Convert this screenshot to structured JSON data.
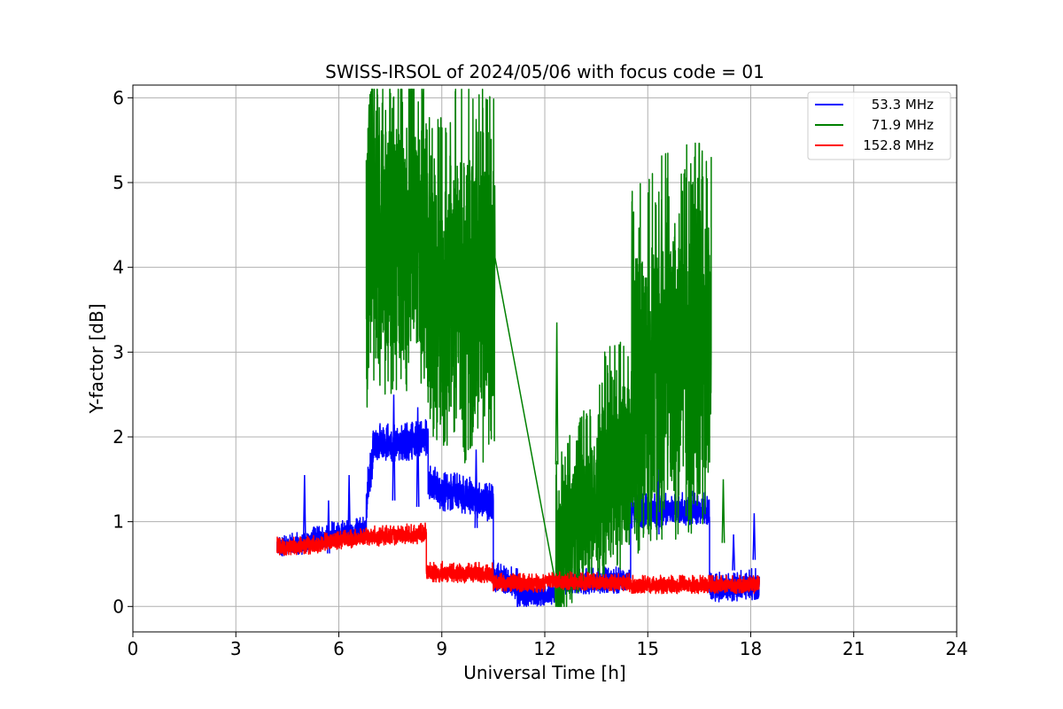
{
  "chart_data": {
    "type": "line",
    "title": "SWISS-IRSOL of 2024/05/06 with focus code = 01",
    "xlabel": "Universal Time [h]",
    "ylabel": "Y-factor [dB]",
    "xlim": [
      0,
      24
    ],
    "ylim": [
      -0.3,
      6.15
    ],
    "xticks": [
      0,
      3,
      6,
      9,
      12,
      15,
      18,
      21,
      24
    ],
    "yticks": [
      0,
      1,
      2,
      3,
      4,
      5,
      6
    ],
    "grid": true,
    "legend_position": "top-right",
    "series": [
      {
        "name": "53.3 MHz",
        "color": "#0000ff",
        "segments": [
          [
            4.2,
            4.8,
            0.68,
            0.75,
            0.08
          ],
          [
            4.8,
            5.5,
            0.72,
            0.82,
            0.09
          ],
          [
            5.5,
            6.0,
            0.8,
            0.88,
            0.09
          ],
          [
            6.0,
            6.8,
            0.85,
            0.92,
            0.09
          ],
          [
            6.8,
            7.0,
            1.2,
            1.85,
            0.18
          ],
          [
            7.0,
            8.6,
            1.9,
            1.95,
            0.15
          ],
          [
            8.6,
            9.2,
            1.45,
            1.3,
            0.15
          ],
          [
            9.2,
            10.5,
            1.35,
            1.2,
            0.15
          ],
          [
            10.5,
            11.2,
            0.35,
            0.25,
            0.12
          ],
          [
            11.2,
            12.3,
            0.12,
            0.14,
            0.09
          ],
          [
            12.3,
            14.5,
            0.28,
            0.3,
            0.1
          ],
          [
            14.5,
            16.8,
            1.1,
            1.15,
            0.13
          ],
          [
            16.8,
            18.25,
            0.2,
            0.25,
            0.12
          ]
        ],
        "spikes": [
          [
            5.0,
            1.55
          ],
          [
            5.7,
            1.25
          ],
          [
            6.3,
            1.55
          ],
          [
            7.6,
            2.5
          ],
          [
            8.3,
            2.35
          ],
          [
            10.0,
            1.85
          ],
          [
            12.6,
            1.0
          ],
          [
            15.3,
            1.7
          ],
          [
            17.5,
            0.85
          ],
          [
            18.1,
            1.1
          ]
        ]
      },
      {
        "name": "71.9 MHz",
        "color": "#008000",
        "segments": [
          [
            6.8,
            7.0,
            4.0,
            5.3,
            1.4
          ],
          [
            7.0,
            8.6,
            4.3,
            4.4,
            1.3
          ],
          [
            8.6,
            9.3,
            3.6,
            3.6,
            1.3
          ],
          [
            9.3,
            10.55,
            3.8,
            3.7,
            1.5
          ],
          [
            12.3,
            12.5,
            0.7,
            0.6,
            0.9
          ],
          [
            12.5,
            13.5,
            0.8,
            1.3,
            0.7
          ],
          [
            13.5,
            14.5,
            1.4,
            1.8,
            0.9
          ],
          [
            14.5,
            16.85,
            2.7,
            3.0,
            1.5
          ]
        ],
        "spikes": [
          [
            7.1,
            5.85
          ],
          [
            10.0,
            5.75
          ],
          [
            12.35,
            3.35
          ],
          [
            15.4,
            4.8
          ],
          [
            16.5,
            4.75
          ],
          [
            17.2,
            1.5
          ]
        ]
      },
      {
        "name": "152.8 MHz",
        "color": "#ff0000",
        "segments": [
          [
            4.2,
            5.5,
            0.7,
            0.72,
            0.07
          ],
          [
            5.5,
            7.0,
            0.75,
            0.82,
            0.07
          ],
          [
            7.0,
            8.55,
            0.82,
            0.85,
            0.08
          ],
          [
            8.55,
            10.5,
            0.4,
            0.38,
            0.08
          ],
          [
            10.5,
            12.0,
            0.28,
            0.26,
            0.07
          ],
          [
            12.0,
            14.5,
            0.3,
            0.27,
            0.07
          ],
          [
            14.5,
            18.25,
            0.25,
            0.25,
            0.07
          ]
        ],
        "spikes": []
      }
    ]
  }
}
